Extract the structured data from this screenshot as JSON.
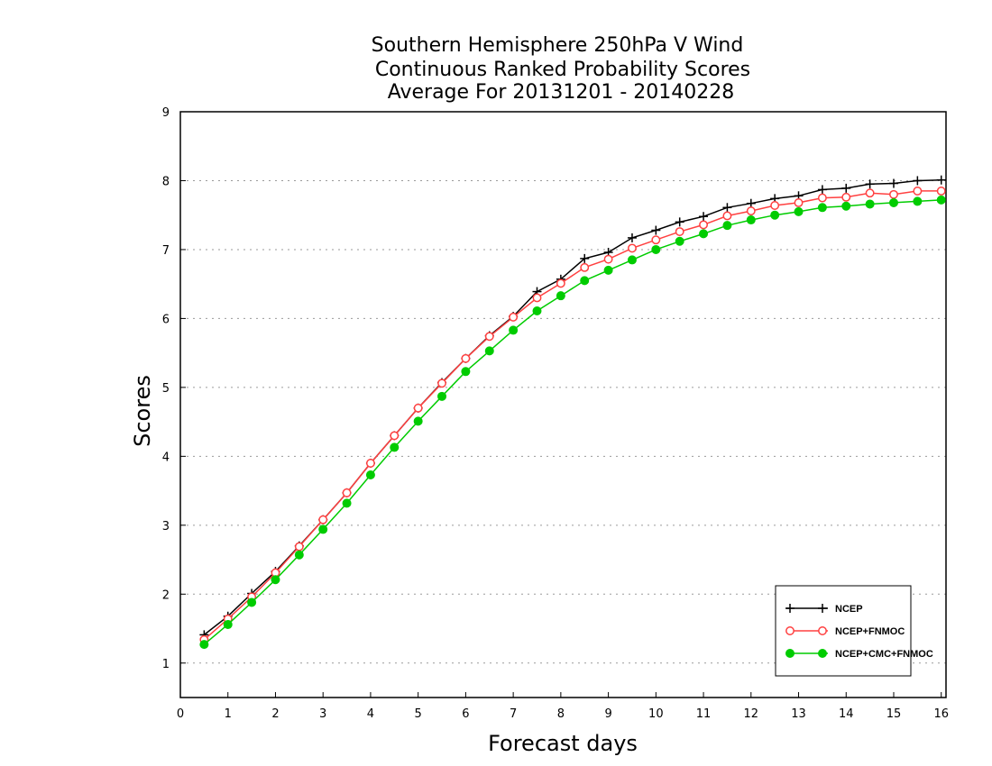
{
  "chart_data": {
    "type": "line",
    "title": [
      "Southern Hemisphere 250hPa V Wind",
      "Continuous Ranked Probability Scores",
      "Average For 20131201 - 20140228"
    ],
    "xlabel": "Forecast days",
    "ylabel": "Scores",
    "xlim": [
      0,
      16.1
    ],
    "ylim": [
      0.5,
      9
    ],
    "xticks": [
      0,
      1,
      2,
      3,
      4,
      5,
      6,
      7,
      8,
      9,
      10,
      11,
      12,
      13,
      14,
      15,
      16
    ],
    "yticks": [
      1,
      2,
      3,
      4,
      5,
      6,
      7,
      8,
      9
    ],
    "grid_y": [
      1,
      2,
      3,
      4,
      5,
      6,
      7,
      8
    ],
    "legend_position": "bottom-right",
    "x": [
      0.5,
      1,
      1.5,
      2,
      2.5,
      3,
      3.5,
      4,
      4.5,
      5,
      5.5,
      6,
      6.5,
      7,
      7.5,
      8,
      8.5,
      9,
      9.5,
      10,
      10.5,
      11,
      11.5,
      12,
      12.5,
      13,
      13.5,
      14,
      14.5,
      15,
      15.5,
      16
    ],
    "series": [
      {
        "name": "NCEP",
        "color": "#000000",
        "marker": "plus",
        "values": [
          1.41,
          1.68,
          2.01,
          2.33,
          2.7,
          3.08,
          3.47,
          3.9,
          4.3,
          4.7,
          5.07,
          5.42,
          5.75,
          6.03,
          6.39,
          6.57,
          6.87,
          6.96,
          7.17,
          7.28,
          7.4,
          7.48,
          7.61,
          7.67,
          7.74,
          7.78,
          7.87,
          7.89,
          7.95,
          7.96,
          8.0,
          8.01
        ]
      },
      {
        "name": "NCEP+FNMOC",
        "color": "#ff4040",
        "marker": "open-circle",
        "values": [
          1.34,
          1.64,
          1.96,
          2.31,
          2.69,
          3.08,
          3.47,
          3.9,
          4.3,
          4.7,
          5.06,
          5.42,
          5.74,
          6.02,
          6.3,
          6.51,
          6.74,
          6.86,
          7.02,
          7.14,
          7.26,
          7.36,
          7.49,
          7.56,
          7.64,
          7.68,
          7.75,
          7.76,
          7.82,
          7.8,
          7.85,
          7.85
        ]
      },
      {
        "name": "NCEP+CMC+FNMOC",
        "color": "#00cc00",
        "marker": "filled-circle",
        "values": [
          1.27,
          1.56,
          1.88,
          2.21,
          2.57,
          2.94,
          3.32,
          3.73,
          4.13,
          4.51,
          4.87,
          5.23,
          5.53,
          5.83,
          6.11,
          6.33,
          6.55,
          6.7,
          6.85,
          7.0,
          7.12,
          7.23,
          7.35,
          7.43,
          7.5,
          7.55,
          7.61,
          7.63,
          7.66,
          7.68,
          7.7,
          7.72
        ]
      }
    ]
  }
}
